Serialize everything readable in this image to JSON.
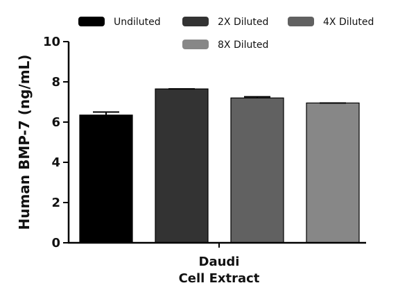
{
  "chart_data": {
    "type": "bar",
    "title": "",
    "xlabel_lines": [
      "Daudi",
      "Cell Extract"
    ],
    "ylabel": "Human BMP-7 (ng/mL)",
    "ylim": [
      0,
      10
    ],
    "yticks": [
      0,
      2,
      4,
      6,
      8,
      10
    ],
    "grid": false,
    "legend_position": "top",
    "series": [
      {
        "name": "Undiluted",
        "value": 6.35,
        "error": 0.15,
        "color": "#000000"
      },
      {
        "name": "2X Diluted",
        "value": 7.65,
        "error": 0.0,
        "color": "#333333"
      },
      {
        "name": "4X Diluted",
        "value": 7.2,
        "error": 0.06,
        "color": "#616161"
      },
      {
        "name": "8X Diluted",
        "value": 6.95,
        "error": 0.0,
        "color": "#878787"
      }
    ]
  }
}
